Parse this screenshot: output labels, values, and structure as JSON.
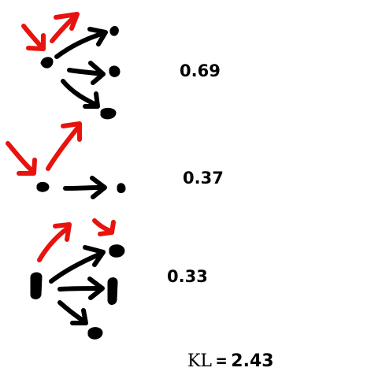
{
  "colors": {
    "ink": "#000000",
    "highlight": "#e8130e"
  },
  "rows": [
    {
      "score": "0.69"
    },
    {
      "score": "0.37"
    },
    {
      "score": "0.33"
    }
  ],
  "summary": {
    "label": "KL",
    "equals": "=",
    "value": "2.43"
  }
}
